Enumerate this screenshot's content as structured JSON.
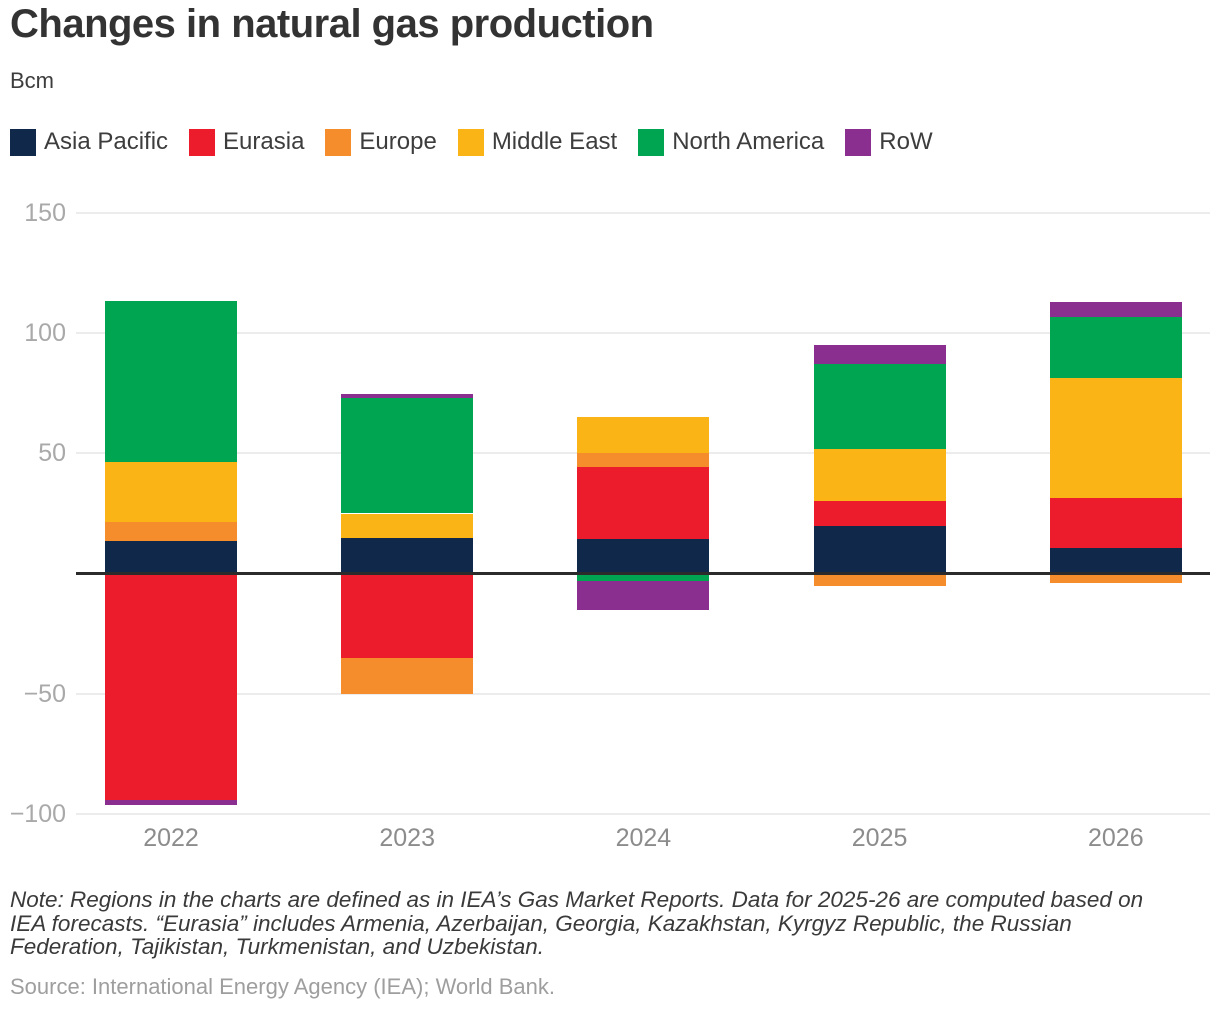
{
  "title": "Changes in natural gas production",
  "unit_label": "Bcm",
  "note": "Note: Regions in the charts are defined as in IEA’s Gas Market Reports. Data for 2025-26 are computed based on IEA forecasts. “Eurasia” includes Armenia, Azerbaijan, Georgia, Kazakhstan, Kyrgyz Republic, the Russian Federation, Tajikistan, Turkmenistan, and Uzbekistan.",
  "source": "Source: International Energy Agency (IEA); World Bank.",
  "colors": {
    "grid": "#ececec",
    "zero_line": "#2b2b2b",
    "axis_text": "#a9a9a9",
    "category_text": "#8c8c8c"
  },
  "chart_data": {
    "type": "bar",
    "stacked": true,
    "title": "Changes in natural gas production",
    "ylabel": "Bcm",
    "xlabel": "",
    "grid": true,
    "legend_position": "top",
    "ylim": [
      -100,
      150
    ],
    "yticks": [
      {
        "value": 150,
        "label": "150"
      },
      {
        "value": 100,
        "label": "100"
      },
      {
        "value": 50,
        "label": "50"
      },
      {
        "value": -50,
        "label": "−50"
      },
      {
        "value": -100,
        "label": "−100"
      }
    ],
    "categories": [
      "2022",
      "2023",
      "2024",
      "2025",
      "2026"
    ],
    "series": [
      {
        "name": "Asia Pacific",
        "color": "#10294a",
        "values": [
          13.5,
          15,
          14.5,
          20,
          10.5
        ]
      },
      {
        "name": "Eurasia",
        "color": "#ed1c2d",
        "values": [
          -94,
          -35,
          30,
          10,
          21
        ]
      },
      {
        "name": "Europe",
        "color": "#f68d2c",
        "values": [
          8,
          -15,
          5.5,
          -5,
          -4
        ]
      },
      {
        "name": "Middle East",
        "color": "#fbb416",
        "values": [
          25,
          10,
          15,
          22,
          50
        ]
      },
      {
        "name": "North America",
        "color": "#00a551",
        "values": [
          67,
          48,
          -3,
          35,
          25
        ]
      },
      {
        "name": "RoW",
        "color": "#8a2e90",
        "values": [
          -2,
          1.5,
          -12,
          8,
          6.5
        ]
      }
    ]
  }
}
